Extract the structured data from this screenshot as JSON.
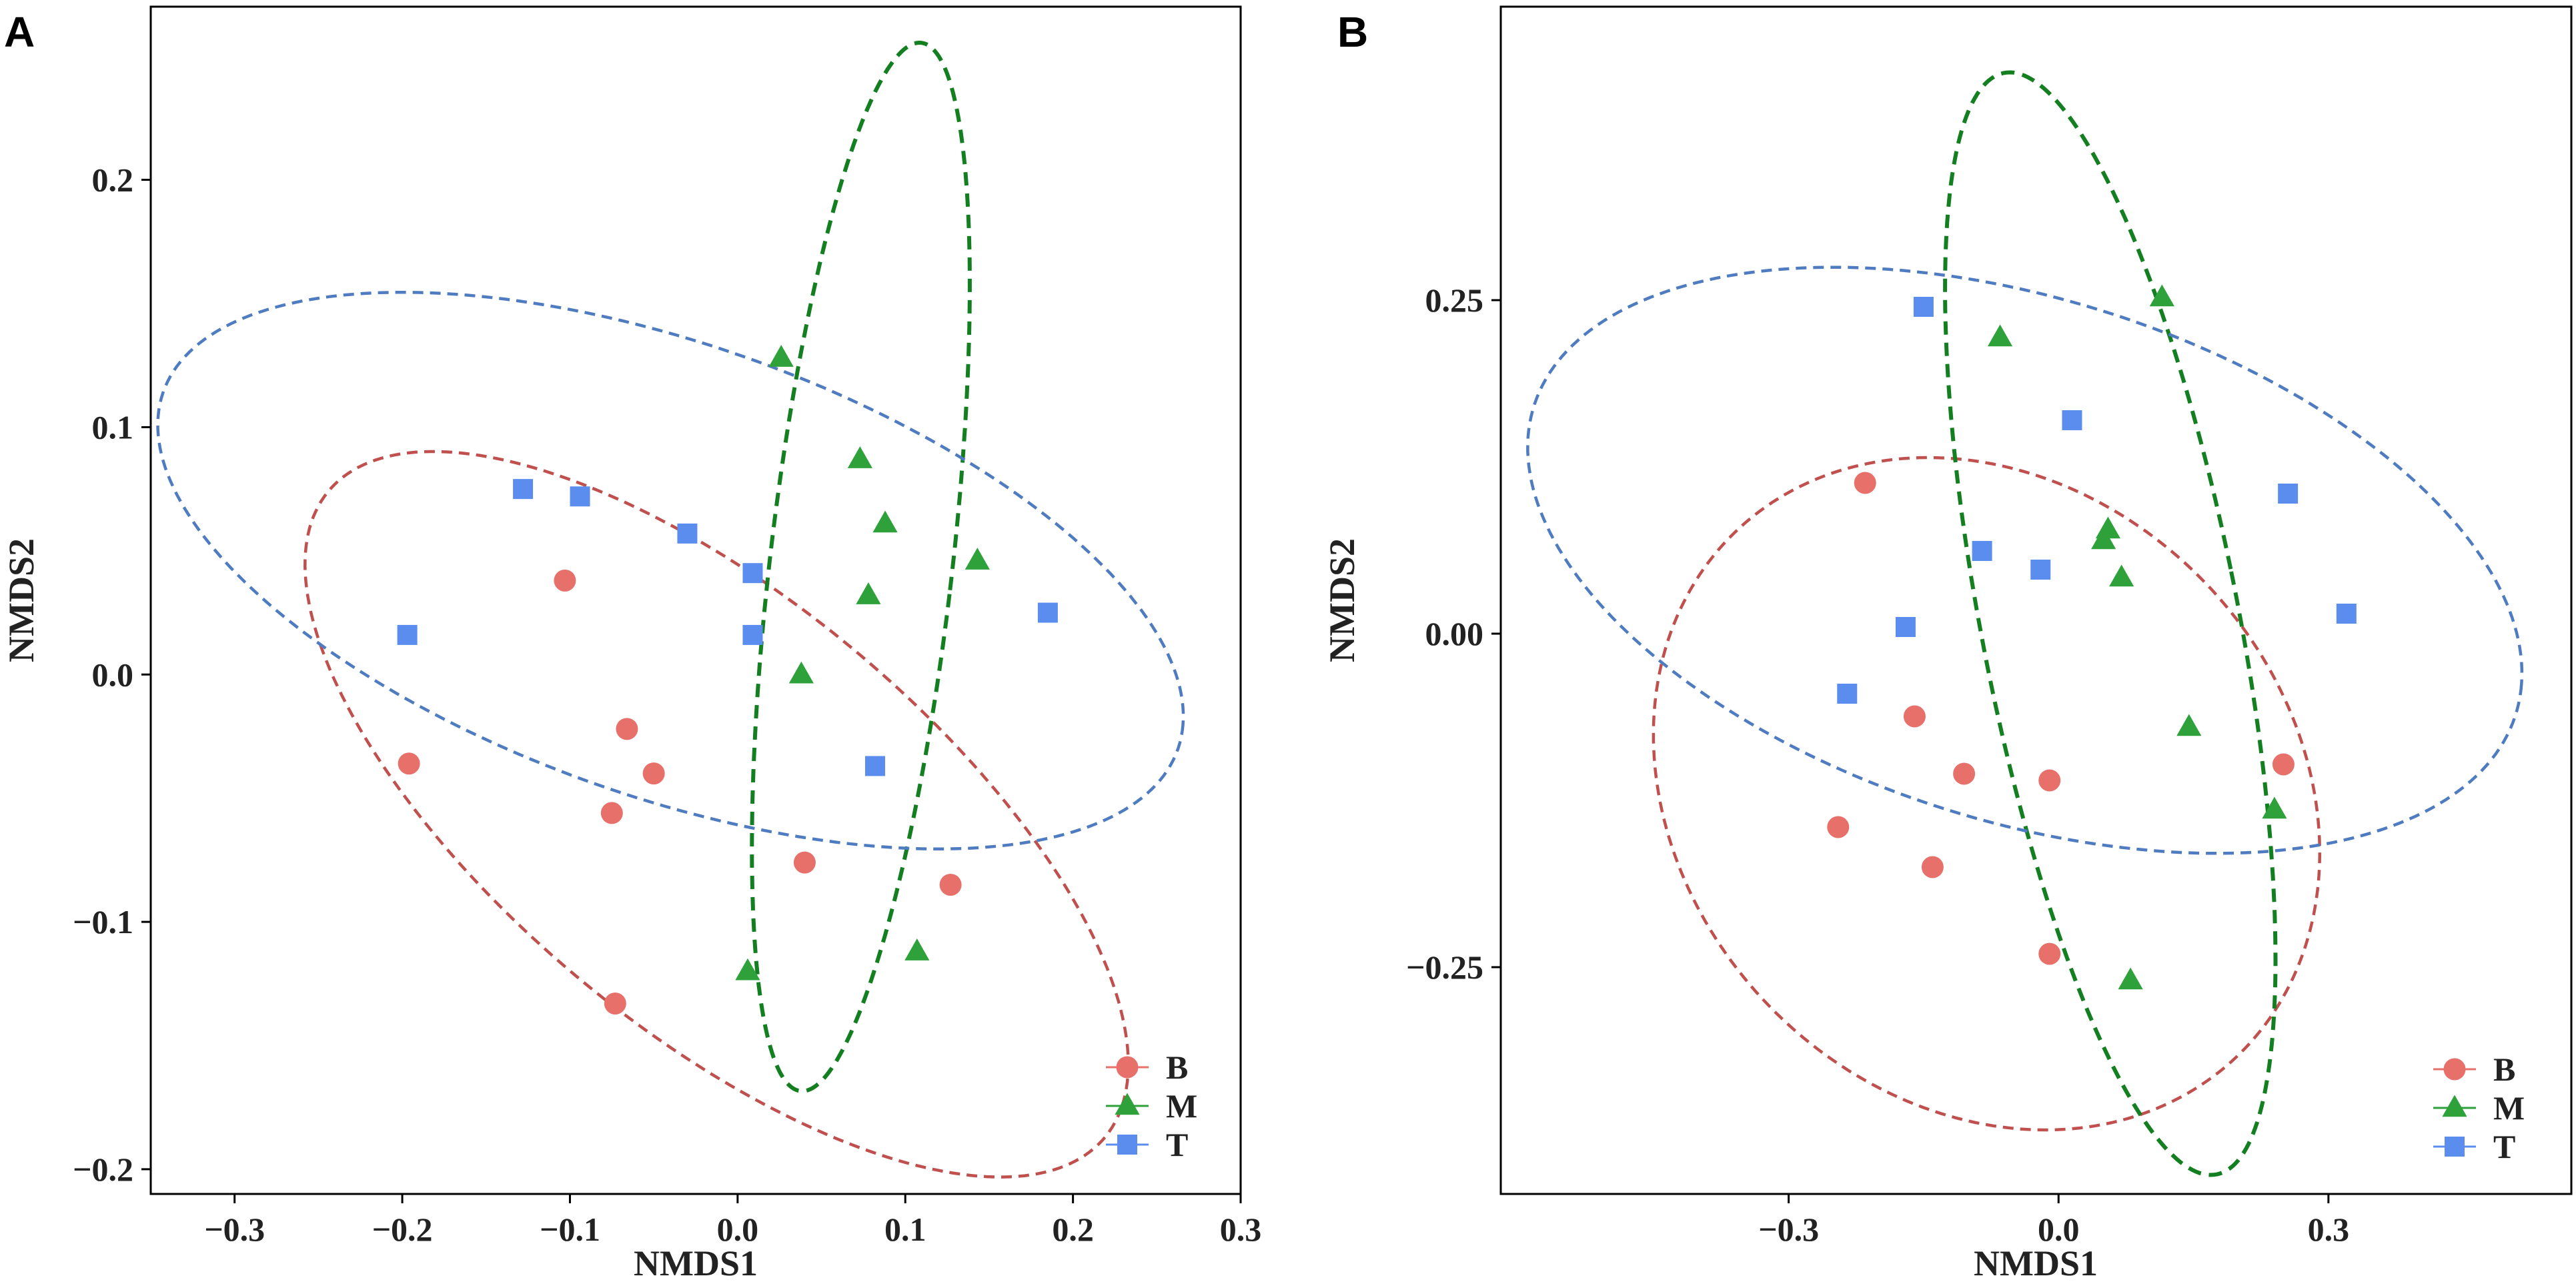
{
  "chart_data": [
    {
      "type": "scatter",
      "panel_label": "A",
      "xlabel": "NMDS1",
      "ylabel": "NMDS2",
      "xlim": [
        -0.35,
        0.3
      ],
      "ylim": [
        -0.21,
        0.27
      ],
      "xticks": [
        -0.3,
        -0.2,
        -0.1,
        0.0,
        0.1,
        0.2,
        0.3
      ],
      "xtick_labels": [
        "−0.3",
        "−0.2",
        "−0.1",
        "0.0",
        "0.1",
        "0.2",
        "0.3"
      ],
      "yticks": [
        -0.2,
        -0.1,
        0.0,
        0.1,
        0.2
      ],
      "ytick_labels": [
        "−0.2",
        "−0.1",
        "0.0",
        "0.1",
        "0.2"
      ],
      "grid": false,
      "legend_position": "bottom-right",
      "series": [
        {
          "name": "B",
          "marker": "circle",
          "color": "#e8706b",
          "points": [
            [
              -0.103,
              0.038
            ],
            [
              -0.196,
              -0.036
            ],
            [
              -0.066,
              -0.022
            ],
            [
              -0.05,
              -0.04
            ],
            [
              -0.075,
              -0.056
            ],
            [
              0.04,
              -0.076
            ],
            [
              0.127,
              -0.085
            ],
            [
              -0.073,
              -0.133
            ]
          ],
          "ellipse": {
            "cx": -0.0125,
            "cy": -0.0565,
            "rx": 0.269,
            "ry": 0.097,
            "angle_deg": -26
          }
        },
        {
          "name": "M",
          "marker": "triangle",
          "color": "#2ea13a",
          "points": [
            [
              0.026,
              0.128
            ],
            [
              0.073,
              0.087
            ],
            [
              0.088,
              0.061
            ],
            [
              0.143,
              0.046
            ],
            [
              0.078,
              0.032
            ],
            [
              0.038,
              0.0
            ],
            [
              0.006,
              -0.12
            ],
            [
              0.107,
              -0.112
            ]
          ],
          "ellipse": {
            "cx": 0.0735,
            "cy": 0.0435,
            "rx": 0.054,
            "ry": 0.215,
            "angle_deg": -10
          }
        },
        {
          "name": "T",
          "marker": "square",
          "color": "#5b8def",
          "points": [
            [
              -0.128,
              0.075
            ],
            [
              -0.094,
              0.072
            ],
            [
              -0.03,
              0.057
            ],
            [
              0.009,
              0.041
            ],
            [
              0.009,
              0.016
            ],
            [
              -0.197,
              0.016
            ],
            [
              0.185,
              0.025
            ],
            [
              0.082,
              -0.037
            ]
          ],
          "ellipse": {
            "cx": -0.04,
            "cy": 0.042,
            "rx": 0.312,
            "ry": 0.094,
            "angle_deg": -12
          }
        }
      ],
      "ellipse_colors": {
        "B": "#c0504d",
        "M": "#137f20",
        "T": "#4f7cc1"
      }
    },
    {
      "type": "scatter",
      "panel_label": "B",
      "xlabel": "NMDS1",
      "ylabel": "NMDS2",
      "xlim": [
        -0.62,
        0.57
      ],
      "ylim": [
        -0.42,
        0.47
      ],
      "xticks": [
        -0.3,
        0.0,
        0.3
      ],
      "xtick_labels": [
        "−0.3",
        "0.0",
        "0.3"
      ],
      "yticks": [
        -0.25,
        0.0,
        0.25
      ],
      "ytick_labels": [
        "−0.25",
        "0.00",
        "0.25"
      ],
      "grid": false,
      "legend_position": "bottom-right",
      "series": [
        {
          "name": "B",
          "marker": "circle",
          "color": "#e8706b",
          "points": [
            [
              -0.215,
              0.113
            ],
            [
              -0.16,
              -0.062
            ],
            [
              -0.105,
              -0.105
            ],
            [
              -0.01,
              -0.11
            ],
            [
              -0.245,
              -0.145
            ],
            [
              -0.14,
              -0.175
            ],
            [
              -0.01,
              -0.24
            ],
            [
              0.25,
              -0.098
            ]
          ],
          "ellipse": {
            "cx": -0.08,
            "cy": -0.12,
            "rx": 0.375,
            "ry": 0.245,
            "angle_deg": -12
          }
        },
        {
          "name": "M",
          "marker": "triangle",
          "color": "#2ea13a",
          "points": [
            [
              0.115,
              0.252
            ],
            [
              -0.065,
              0.222
            ],
            [
              0.05,
              0.07
            ],
            [
              0.055,
              0.078
            ],
            [
              0.07,
              0.042
            ],
            [
              0.145,
              -0.07
            ],
            [
              0.24,
              -0.132
            ],
            [
              0.08,
              -0.26
            ]
          ],
          "ellipse": {
            "cx": 0.0575,
            "cy": 0.0075,
            "rx": 0.14,
            "ry": 0.43,
            "angle_deg": 17
          }
        },
        {
          "name": "T",
          "marker": "square",
          "color": "#5b8def",
          "points": [
            [
              -0.15,
              0.245
            ],
            [
              0.015,
              0.16
            ],
            [
              0.255,
              0.105
            ],
            [
              -0.085,
              0.062
            ],
            [
              -0.02,
              0.048
            ],
            [
              -0.17,
              0.005
            ],
            [
              0.32,
              0.015
            ],
            [
              -0.235,
              -0.045
            ]
          ],
          "ellipse": {
            "cx": -0.0375,
            "cy": 0.055,
            "rx": 0.56,
            "ry": 0.2,
            "angle_deg": -10
          }
        }
      ],
      "ellipse_colors": {
        "B": "#c0504d",
        "M": "#137f20",
        "T": "#4f7cc1"
      }
    }
  ]
}
